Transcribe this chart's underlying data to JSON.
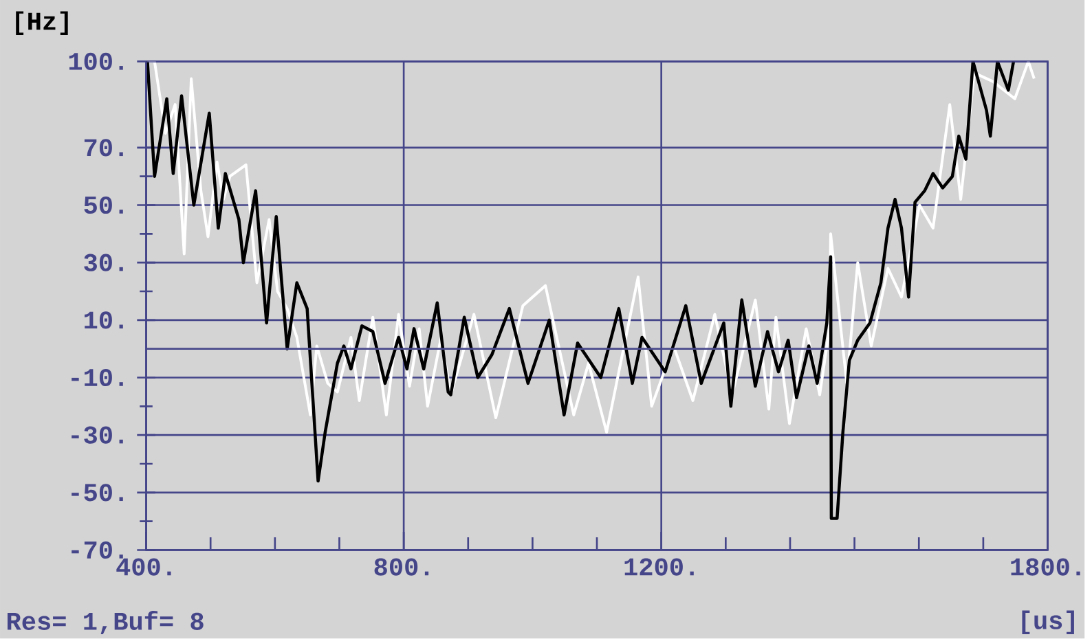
{
  "chart_data": {
    "type": "line",
    "xlabel": "[us]",
    "ylabel": "[Hz]",
    "annotations": [
      "Res= 1,Buf= 8"
    ],
    "xlim": [
      400,
      1800
    ],
    "ylim": [
      -70,
      100
    ],
    "xticks": [
      {
        "value": 400,
        "label": "400."
      },
      {
        "value": 500,
        "label": null
      },
      {
        "value": 600,
        "label": null
      },
      {
        "value": 700,
        "label": null
      },
      {
        "value": 800,
        "label": "800."
      },
      {
        "value": 900,
        "label": null
      },
      {
        "value": 1000,
        "label": null
      },
      {
        "value": 1100,
        "label": null
      },
      {
        "value": 1200,
        "label": "1200."
      },
      {
        "value": 1300,
        "label": null
      },
      {
        "value": 1400,
        "label": null
      },
      {
        "value": 1500,
        "label": null
      },
      {
        "value": 1600,
        "label": null
      },
      {
        "value": 1700,
        "label": null
      },
      {
        "value": 1800,
        "label": "1800."
      }
    ],
    "yticks": [
      {
        "value": -70,
        "label": "-70."
      },
      {
        "value": -60,
        "label": null
      },
      {
        "value": -50,
        "label": "-50."
      },
      {
        "value": -40,
        "label": null
      },
      {
        "value": -30,
        "label": "-30."
      },
      {
        "value": -20,
        "label": null
      },
      {
        "value": -10,
        "label": "-10."
      },
      {
        "value": 10,
        "label": "10."
      },
      {
        "value": 20,
        "label": null
      },
      {
        "value": 30,
        "label": "30."
      },
      {
        "value": 40,
        "label": null
      },
      {
        "value": 50,
        "label": "50."
      },
      {
        "value": 60,
        "label": null
      },
      {
        "value": 70,
        "label": "70."
      },
      {
        "value": 100,
        "label": "100."
      }
    ],
    "ref_lines": [
      {
        "axis": "y",
        "value": 0,
        "color": "#4a4a8c"
      }
    ],
    "grid": true,
    "series": [
      {
        "color": "#ffffff",
        "x": [
          402,
          413,
          430,
          445,
          459,
          470,
          485,
          496,
          510,
          520,
          530,
          555,
          572,
          591,
          604,
          619,
          634,
          655,
          665,
          682,
          697,
          718,
          731,
          752,
          773,
          792,
          809,
          824,
          837,
          858,
          873,
          909,
          943,
          985,
          1020,
          1064,
          1087,
          1115,
          1164,
          1185,
          1219,
          1249,
          1283,
          1310,
          1332,
          1346,
          1367,
          1378,
          1399,
          1425,
          1446,
          1461,
          1463,
          1488,
          1505,
          1526,
          1552,
          1573,
          1601,
          1622,
          1648,
          1665,
          1686,
          1715,
          1749,
          1770,
          1779
        ],
        "values": [
          100,
          100,
          75,
          85,
          33,
          94,
          55,
          39,
          65,
          52,
          60,
          64,
          23,
          45,
          20,
          14,
          4,
          -23,
          1,
          -12,
          -15,
          4,
          -18,
          11,
          -23,
          12,
          -13,
          7,
          -20,
          4,
          -16,
          12,
          -24,
          15,
          22,
          -23,
          -5,
          -29,
          25,
          -20,
          1,
          -18,
          12,
          -16,
          4,
          17,
          -21,
          11,
          -26,
          7,
          -16,
          7,
          40,
          -12,
          30,
          1,
          28,
          18,
          50,
          42,
          85,
          52,
          96,
          93,
          87,
          100,
          94
        ]
      },
      {
        "color": "#000000",
        "x": [
          402,
          413,
          432,
          442,
          455,
          474,
          498,
          512,
          523,
          544,
          551,
          570,
          587,
          602,
          619,
          634,
          650,
          667,
          678,
          697,
          707,
          718,
          735,
          752,
          771,
          792,
          805,
          816,
          831,
          852,
          869,
          873,
          894,
          915,
          937,
          964,
          993,
          1026,
          1049,
          1070,
          1106,
          1134,
          1155,
          1170,
          1206,
          1238,
          1262,
          1297,
          1308,
          1325,
          1346,
          1365,
          1382,
          1397,
          1410,
          1429,
          1442,
          1457,
          1463,
          1464,
          1473,
          1482,
          1492,
          1505,
          1524,
          1541,
          1552,
          1563,
          1573,
          1584,
          1594,
          1609,
          1622,
          1637,
          1652,
          1662,
          1673,
          1684,
          1705,
          1711,
          1722,
          1739,
          1747
        ],
        "values": [
          100,
          60,
          87,
          61,
          88,
          50,
          82,
          42,
          61,
          45,
          30,
          55,
          9,
          46,
          0,
          23,
          14,
          -46,
          -29,
          -5,
          1,
          -7,
          8,
          6,
          -12,
          4,
          -7,
          7,
          -7,
          16,
          -15,
          -16,
          11,
          -10,
          -2,
          14,
          -12,
          10,
          -23,
          2,
          -10,
          14,
          -12,
          4,
          -8,
          15,
          -12,
          9,
          -20,
          17,
          -13,
          6,
          -8,
          3,
          -17,
          1,
          -12,
          9,
          32,
          -59,
          -59,
          -29,
          -4,
          3,
          9,
          23,
          42,
          52,
          42,
          18,
          51,
          55,
          61,
          56,
          60,
          74,
          66,
          100,
          83,
          74,
          100,
          90,
          100
        ]
      }
    ]
  }
}
